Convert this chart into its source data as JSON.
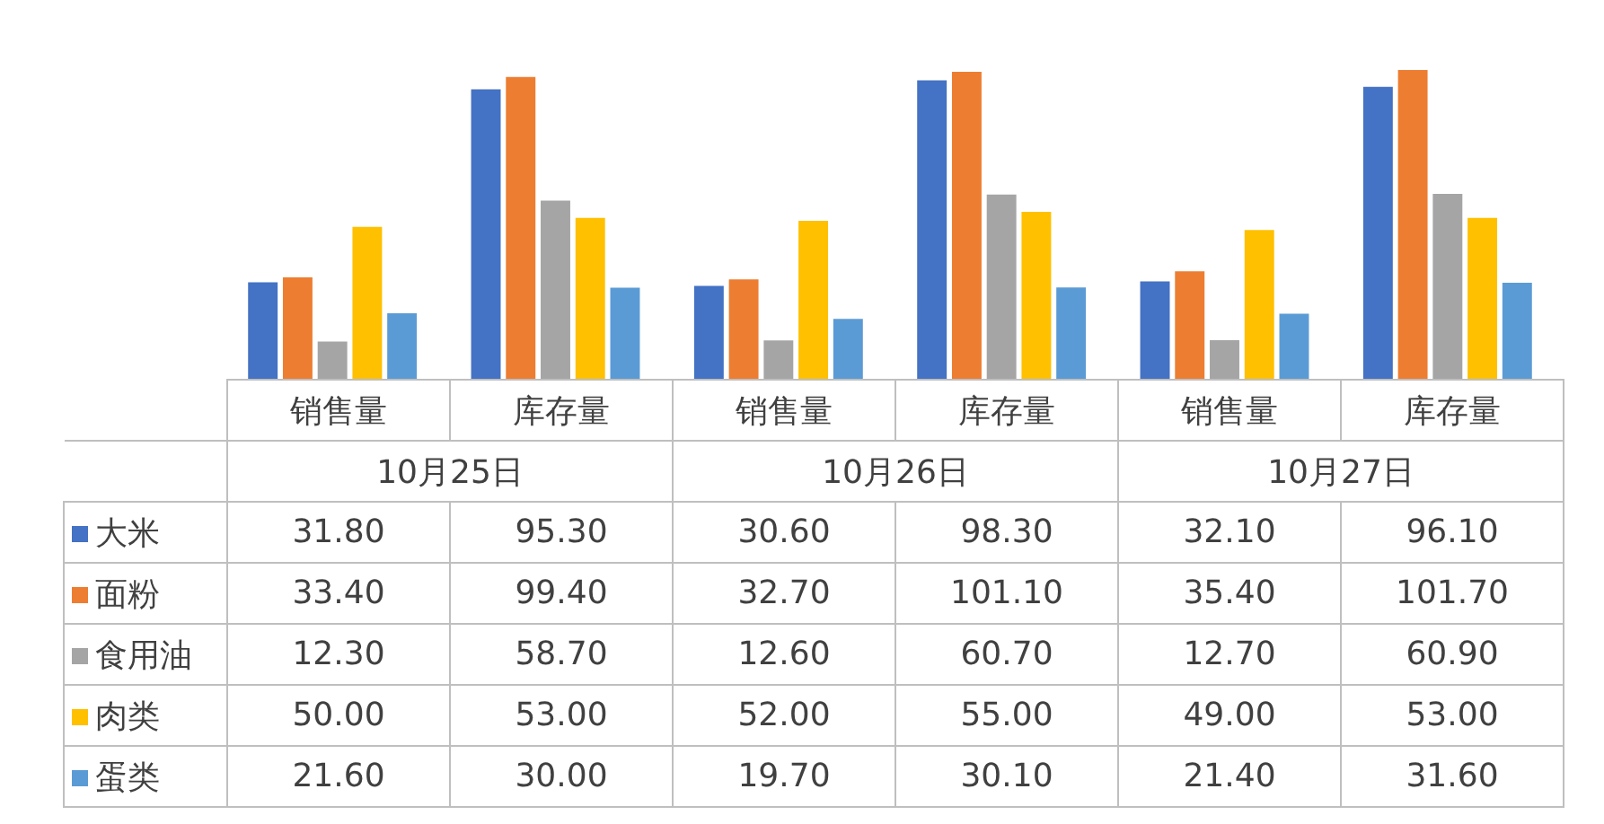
{
  "chart_data": {
    "type": "bar",
    "legend": "bottom left",
    "categories": [
      "销售量",
      "库存量",
      "销售量",
      "库存量",
      "销售量",
      "库存量"
    ],
    "annotations": [
      "10月25日",
      "10月26日",
      "10月27日"
    ],
    "series": [
      {
        "name": "大米",
        "color": "#4472c4",
        "values": [
          31.8,
          95.3,
          30.6,
          98.3,
          32.1,
          96.1
        ],
        "value_labels": [
          "31.80",
          "95.30",
          "30.60",
          "98.30",
          "32.10",
          "96.10"
        ]
      },
      {
        "name": "面粉",
        "color": "#ed7d31",
        "values": [
          33.4,
          99.4,
          32.7,
          101.1,
          35.4,
          101.7
        ],
        "value_labels": [
          "33.40",
          "99.40",
          "32.70",
          "101.10",
          "35.40",
          "101.70"
        ]
      },
      {
        "name": "食用油",
        "color": "#a5a5a5",
        "values": [
          12.3,
          58.7,
          12.6,
          60.7,
          12.7,
          60.9
        ],
        "value_labels": [
          "12.30",
          "58.70",
          "12.60",
          "60.70",
          "12.70",
          "60.90"
        ]
      },
      {
        "name": "肉类",
        "color": "#ffc000",
        "values": [
          50.0,
          53.0,
          52.0,
          55.0,
          49.0,
          53.0
        ],
        "value_labels": [
          "50.00",
          "53.00",
          "52.00",
          "55.00",
          "49.00",
          "53.00"
        ]
      },
      {
        "name": "蛋类",
        "color": "#5b9bd5",
        "values": [
          21.6,
          30.0,
          19.7,
          30.1,
          21.4,
          31.6
        ],
        "value_labels": [
          "21.60",
          "30.00",
          "19.70",
          "30.10",
          "21.40",
          "31.60"
        ]
      }
    ]
  }
}
